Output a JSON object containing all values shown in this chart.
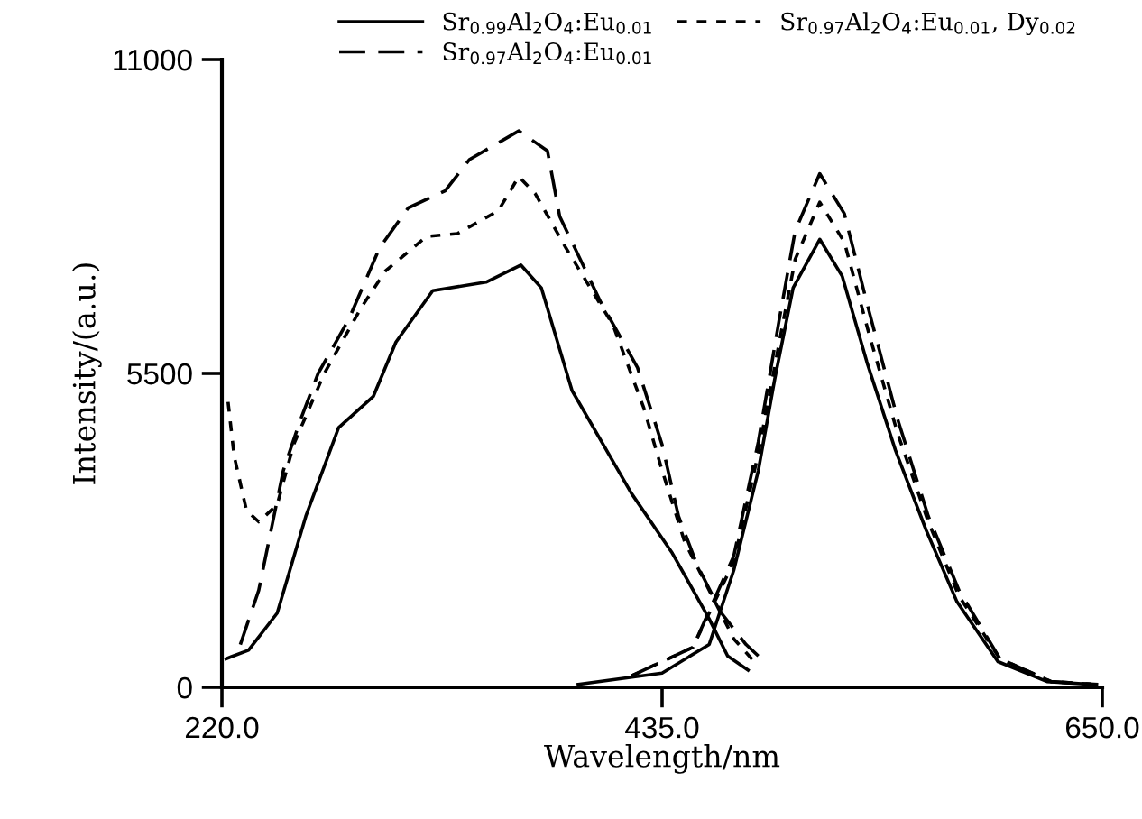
{
  "chart_data": {
    "type": "line",
    "xlabel": "Wavelength/nm",
    "ylabel": "Intensity/(a.u.)",
    "xlim": [
      220,
      650
    ],
    "ylim": [
      0,
      11000
    ],
    "xticks": [
      {
        "value": 220,
        "label": "220.0"
      },
      {
        "value": 435,
        "label": "435.0"
      },
      {
        "value": 650,
        "label": "650.0"
      }
    ],
    "yticks": [
      0,
      5500,
      11000
    ],
    "grid": false,
    "legend": "top",
    "marker": "none",
    "series": [
      {
        "name": "Sr$_{0.99}$Al$_{2}$O$_{4}$:Eu$_{0.01}$",
        "color": "#000000",
        "line_style": "solid",
        "x": [
          222,
          233,
          247,
          261,
          277,
          294,
          305,
          323,
          349,
          366,
          376,
          391,
          420,
          440,
          458,
          467,
          477
        ],
        "values": [
          500,
          650,
          1300,
          3000,
          4550,
          5100,
          6050,
          6950,
          7100,
          7400,
          7000,
          5200,
          3400,
          2350,
          1200,
          550,
          300
        ]
      },
      {
        "name": "Sr$_{0.97}$Al$_{2}$O$_{4}$:Eu$_{0.01}$",
        "color": "#000000",
        "line_style": "dashed",
        "x": [
          229,
          238,
          244,
          250,
          258,
          267,
          282,
          297,
          311,
          329,
          341,
          365,
          379,
          385,
          405,
          423,
          435,
          443,
          452,
          464,
          476,
          482
        ],
        "values": [
          750,
          1700,
          2750,
          3800,
          4650,
          5500,
          6450,
          7700,
          8400,
          8700,
          9250,
          9750,
          9400,
          8250,
          6750,
          5600,
          4250,
          3000,
          2150,
          1300,
          750,
          550
        ]
      },
      {
        "name": "Sr$_{0.97}$Al$_{2}$O$_{4}$:Eu$_{0.01}$, Dy$_{0.02}$",
        "color": "#000000",
        "line_style": "dotted",
        "x": [
          223,
          226,
          232,
          238,
          247,
          255,
          270,
          288,
          300,
          320,
          335,
          355,
          365,
          373,
          388,
          411,
          426,
          435,
          446,
          458,
          470,
          480
        ],
        "values": [
          5000,
          4050,
          3100,
          2900,
          3200,
          4250,
          5500,
          6650,
          7300,
          7900,
          7950,
          8350,
          8950,
          8650,
          7700,
          6350,
          4900,
          3800,
          2550,
          1700,
          850,
          450
        ]
      },
      {
        "color": "#000000",
        "line_style": "solid",
        "x": [
          394,
          435,
          458,
          470,
          482,
          490,
          499,
          512,
          523,
          535,
          549,
          564,
          579,
          599,
          623,
          646
        ],
        "values": [
          50,
          250,
          750,
          2050,
          3800,
          5400,
          7000,
          7850,
          7200,
          5700,
          4150,
          2750,
          1500,
          450,
          100,
          50
        ]
      },
      {
        "color": "#000000",
        "line_style": "dashed",
        "x": [
          420,
          450,
          470,
          482,
          492,
          500,
          512,
          524,
          536,
          550,
          565,
          580,
          600,
          625,
          648
        ],
        "values": [
          200,
          700,
          2300,
          4300,
          6400,
          8000,
          9000,
          8300,
          6600,
          4700,
          3000,
          1700,
          500,
          100,
          50
        ]
      },
      {
        "color": "#000000",
        "line_style": "dotted",
        "x": [
          420,
          450,
          470,
          482,
          492,
          500,
          512,
          524,
          536,
          550,
          565,
          580,
          600,
          625,
          648
        ],
        "values": [
          200,
          700,
          2200,
          4100,
          6000,
          7500,
          8500,
          7800,
          6200,
          4450,
          2900,
          1600,
          500,
          100,
          50
        ]
      }
    ]
  }
}
